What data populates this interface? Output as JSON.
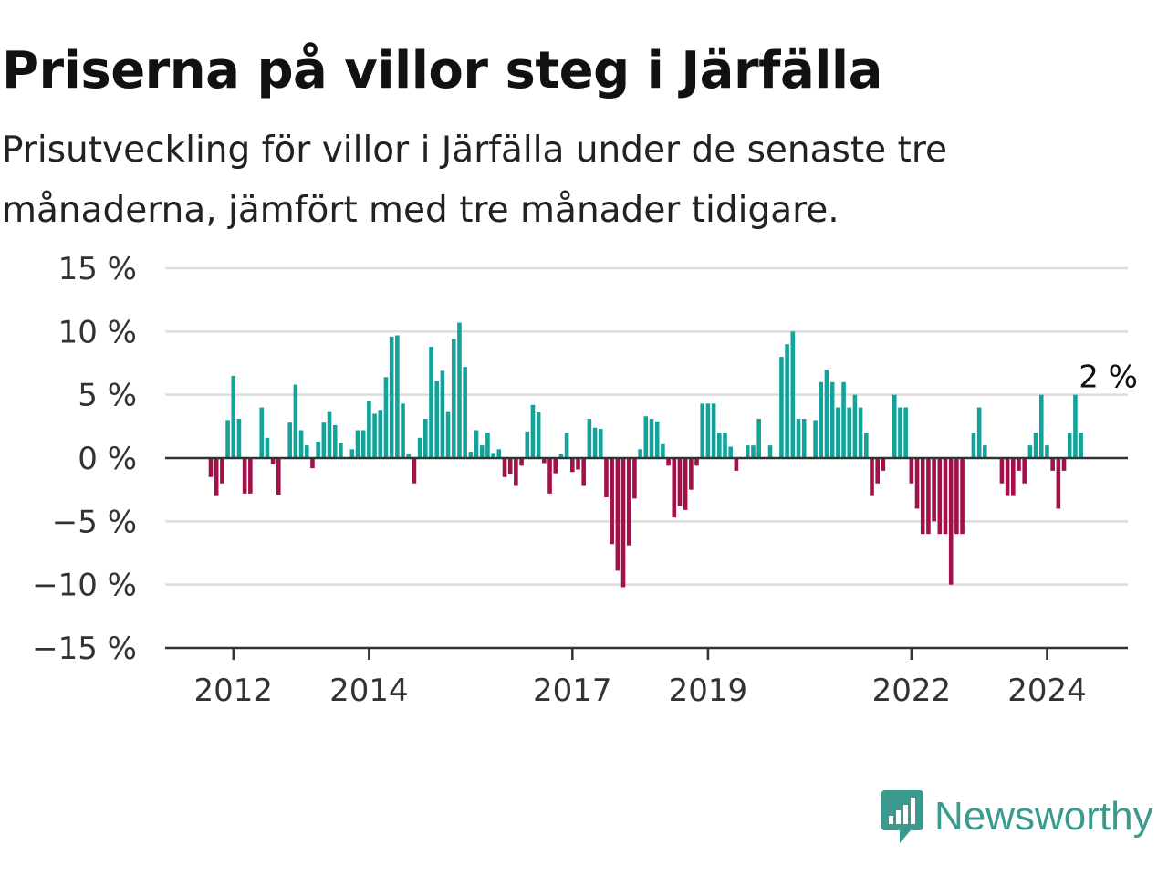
{
  "title": "Priserna på villor steg i Järfälla",
  "subtitle": "Prisutveckling för villor i Järfälla under de senaste tre månaderna, jämfört med tre månader tidigare.",
  "brand": {
    "name": "Newsworthy",
    "color": "#3a9a8e",
    "icon": "newsworthy-logo-icon"
  },
  "chart_data": {
    "type": "bar",
    "x_start": "2011-09",
    "x_interval": "month",
    "title": "Priserna på villor steg i Järfälla",
    "subtitle": "Prisutveckling för villor i Järfälla under de senaste tre månaderna, jämfört med tre månader tidigare.",
    "xlabel": "",
    "ylabel": "",
    "ylim": [
      -15,
      15
    ],
    "y_ticks": [
      15,
      10,
      5,
      0,
      -5,
      -10,
      -15
    ],
    "y_tick_labels": [
      "15 %",
      "10 %",
      "5 %",
      "0 %",
      "−5 %",
      "−10 %",
      "−15 %"
    ],
    "x_ticks": [
      {
        "label": "2012",
        "date": "2012-01"
      },
      {
        "label": "2014",
        "date": "2014-01"
      },
      {
        "label": "2017",
        "date": "2017-01"
      },
      {
        "label": "2019",
        "date": "2019-01"
      },
      {
        "label": "2022",
        "date": "2022-01"
      },
      {
        "label": "2024",
        "date": "2024-01"
      }
    ],
    "grid": true,
    "colors": {
      "positive": "#14a39a",
      "negative": "#a3104a",
      "grid": "#dddddd",
      "zero_line": "#333333"
    },
    "end_label": "2 %",
    "values": [
      -1.5,
      -3,
      -2,
      3,
      6.5,
      3.1,
      -2.8,
      -2.8,
      0,
      4,
      1.6,
      -0.5,
      -2.9,
      0,
      2.8,
      5.8,
      2.2,
      1,
      -0.8,
      1.3,
      2.8,
      3.7,
      2.6,
      1.2,
      0,
      0.7,
      2.2,
      2.2,
      4.5,
      3.5,
      3.8,
      6.4,
      9.6,
      9.7,
      4.3,
      0.3,
      -2,
      1.6,
      3.1,
      8.8,
      6.1,
      6.9,
      3.7,
      9.4,
      10.7,
      7.2,
      0.5,
      2.2,
      1,
      2,
      0.4,
      0.7,
      -1.5,
      -1.3,
      -2.2,
      -0.6,
      2.1,
      4.2,
      3.6,
      -0.4,
      -2.8,
      -1.2,
      0.3,
      2,
      -1.1,
      -0.9,
      -2.2,
      3.1,
      2.4,
      2.3,
      -3.1,
      -6.8,
      -8.9,
      -10.2,
      -6.9,
      -3.2,
      0.7,
      3.3,
      3.1,
      2.9,
      1.1,
      -0.6,
      -4.7,
      -3.8,
      -4.1,
      -2.5,
      -0.6,
      4.3,
      4.3,
      4.3,
      2,
      2,
      0.9,
      -1,
      0,
      1,
      1,
      3.1,
      0,
      1,
      0,
      8,
      9,
      10,
      3.1,
      3.1,
      0,
      3,
      6,
      7,
      6,
      4,
      6,
      4,
      5,
      4,
      2,
      -3,
      -2,
      -1,
      0,
      5,
      4,
      4,
      -2,
      -4,
      -6,
      -6,
      -5,
      -6,
      -6,
      -10,
      -6,
      -6,
      0,
      2,
      4,
      1,
      0,
      0,
      -2,
      -3,
      -3,
      -1,
      -2,
      1,
      2,
      5,
      1,
      -1,
      -4,
      -1,
      2,
      5,
      2
    ]
  }
}
